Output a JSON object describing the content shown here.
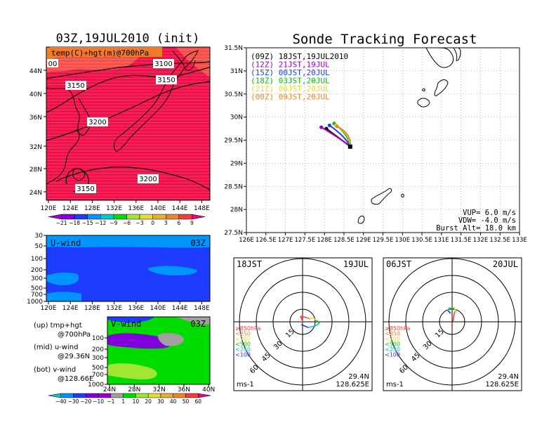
{
  "panel_top_left": {
    "title": "03Z,19JUL2010 (init)",
    "label": "temp(C)+hgt(m)@700hPa",
    "contours": [
      "3100",
      "3150",
      "3150",
      "3200",
      "3200",
      "3150",
      "00"
    ],
    "yticks": [
      "44N",
      "40N",
      "36N",
      "32N",
      "28N",
      "24N"
    ],
    "xticks": [
      "120E",
      "124E",
      "128E",
      "132E",
      "136E",
      "140E",
      "144E",
      "148E"
    ],
    "colorbar": [
      "−21",
      "−18",
      "−15",
      "−12",
      "−9",
      "−6",
      "−3",
      "0",
      "3",
      "6",
      "9"
    ],
    "colorbar_colors": [
      "#a000c8",
      "#8200dc",
      "#1e3cff",
      "#0096ff",
      "#00c8c8",
      "#00dc00",
      "#a0e632",
      "#e6dc32",
      "#e6af2d",
      "#f08228",
      "#fa3c3c",
      "#f00082"
    ]
  },
  "panel_uwind": {
    "label": "U-wind",
    "time": "03Z",
    "yticks": [
      "30",
      "50",
      "100",
      "200",
      "300",
      "500",
      "700",
      "1000"
    ],
    "xticks": [
      "120E",
      "124E",
      "128E",
      "132E",
      "136E",
      "140E",
      "144E",
      "148E"
    ]
  },
  "panel_vwind": {
    "label": "V-wind",
    "time": "03Z",
    "yticks": [
      "100",
      "200",
      "300",
      "500",
      "700",
      "1000"
    ],
    "xticks": [
      "24N",
      "28N",
      "32N",
      "36N",
      "40N"
    ],
    "colorbar": [
      "−40",
      "−30",
      "−20",
      "−10",
      "−1",
      "1",
      "10",
      "20",
      "30",
      "40",
      "50",
      "60"
    ],
    "colorbar_colors": [
      "#00c8c8",
      "#0096ff",
      "#1e3cff",
      "#8200dc",
      "#a000c8",
      "#a0a0a0",
      "#00dc00",
      "#a0e632",
      "#e6dc32",
      "#e6af2d",
      "#f08228",
      "#fa3c3c",
      "#f00082"
    ]
  },
  "legend_notes": [
    {
      "line1": "(up) tmp+hgt",
      "line2": "@700hPa"
    },
    {
      "line1": "(mid) u-wind",
      "line2": "@29.36N"
    },
    {
      "line1": "(bot) v-wind",
      "line2": "@128.66E"
    }
  ],
  "tracking": {
    "title": "Sonde Tracking Forecast",
    "yticks": [
      "31.5N",
      "31N",
      "30.5N",
      "30N",
      "29.5N",
      "29N",
      "28.5N",
      "28N",
      "27.5N"
    ],
    "xticks": [
      "126E",
      "126.5E",
      "127E",
      "127.5E",
      "128E",
      "128.5E",
      "129E",
      "129.5E",
      "130E",
      "130.5E",
      "131E",
      "131.5E",
      "132E",
      "132.5E",
      "133E"
    ],
    "xlim": [
      126,
      133
    ],
    "ylim": [
      27.5,
      31.5
    ],
    "launch": {
      "lon": 128.66,
      "lat": 29.36
    },
    "series": [
      {
        "name": "(09Z)  18JST,19JUL2010",
        "color": "#000000",
        "end": [
          128.05,
          29.75
        ]
      },
      {
        "name": "(12Z)  21JST,19JUL",
        "color": "#a000c8",
        "end": [
          127.92,
          29.78
        ]
      },
      {
        "name": "(15Z)  00JST,20JUL",
        "color": "#1e3cff",
        "end": [
          128.13,
          29.82
        ]
      },
      {
        "name": "(18Z)  03JST,20JUL",
        "color": "#00c800",
        "end": [
          128.25,
          29.86
        ]
      },
      {
        "name": "(21Z)  06JST,20JUL",
        "color": "#e6dc32",
        "end": [
          128.3,
          29.82
        ]
      },
      {
        "name": "(00Z)  09JST,20JUL",
        "color": "#f08228",
        "end": [
          128.32,
          29.8
        ]
      }
    ],
    "info": [
      "VUP= 6.0 m/s",
      "VDW= -4.0 m/s",
      "Burst Alt= 18.0 km"
    ]
  },
  "hodo_left": {
    "time": "18JST",
    "date": "19JUL",
    "lat": "29.4N",
    "lon": "128.625E",
    "unit": "ms-1",
    "rings": [
      "15",
      "30",
      "45",
      "60"
    ]
  },
  "hodo_right": {
    "time": "06JST",
    "date": "20JUL",
    "lat": "29.4N",
    "lon": "128.625E",
    "unit": "ms-1",
    "rings": [
      "15",
      "30",
      "45",
      "60"
    ]
  },
  "hodo_levels": [
    {
      "label": "≥850hPa",
      "color": "#fa3c3c"
    },
    {
      "label": "<850",
      "color": "#f08228"
    },
    {
      "label": "<700",
      "color": "#e6dc32"
    },
    {
      "label": "<500",
      "color": "#00c800"
    },
    {
      "label": "<250",
      "color": "#00c8c8"
    },
    {
      "label": "<100",
      "color": "#1e3cff"
    }
  ]
}
